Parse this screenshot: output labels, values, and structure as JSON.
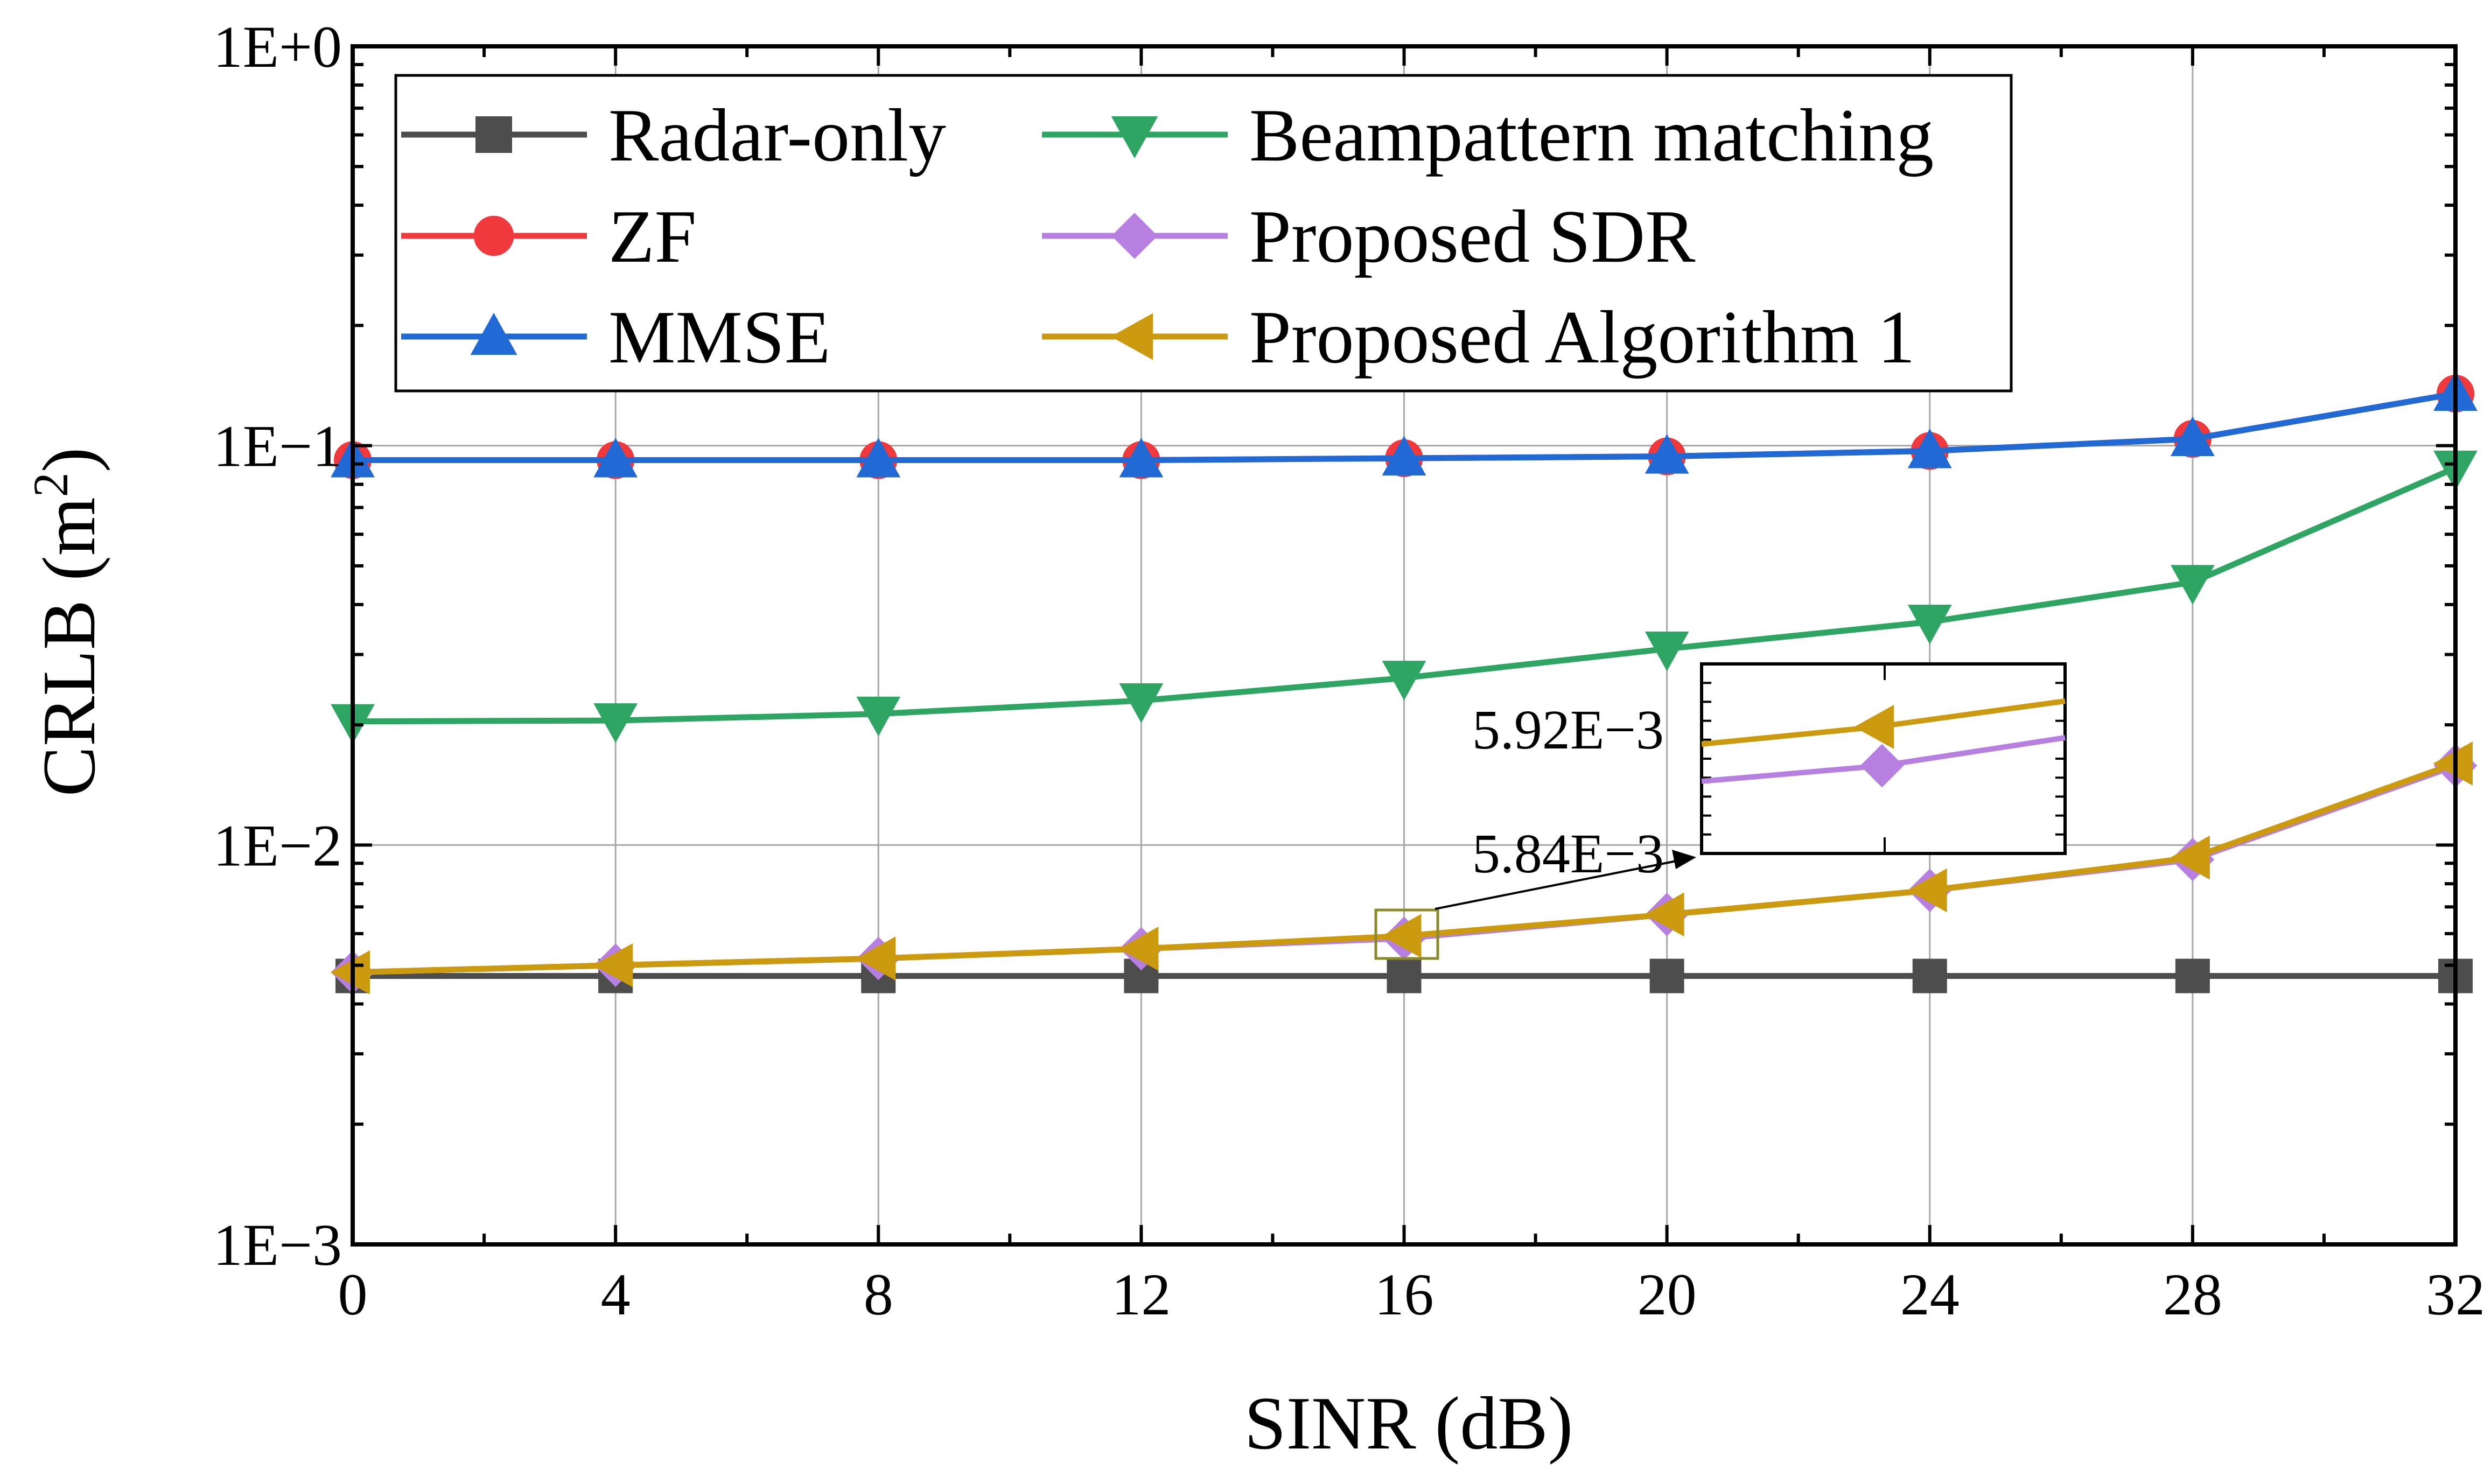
{
  "chart_data": {
    "type": "line",
    "title": "",
    "xlabel": "SINR (dB)",
    "ylabel_main": "CRLB (m",
    "ylabel_sup": "2",
    "ylabel_close": ")",
    "yscale": "log",
    "xlim": [
      0,
      32
    ],
    "ylim": [
      0.001,
      1
    ],
    "grid": true,
    "legend_position": "top-left",
    "x": [
      0,
      4,
      8,
      12,
      16,
      20,
      24,
      28,
      32
    ],
    "x_tick_labels": [
      "0",
      "4",
      "8",
      "12",
      "16",
      "20",
      "24",
      "28",
      "32"
    ],
    "y_tick_labels": [
      "1E−3",
      "1E−2",
      "1E−1",
      "1E+0"
    ],
    "y_ticks": [
      0.001,
      0.01,
      0.1,
      1
    ],
    "series": [
      {
        "name": "Radar-only",
        "color": "#4d4d4d",
        "marker": "square",
        "values": [
          0.0047,
          0.0047,
          0.0047,
          0.0047,
          0.0047,
          0.0047,
          0.0047,
          0.0047,
          0.0047
        ]
      },
      {
        "name": "ZF",
        "color": "#f0393c",
        "marker": "circle",
        "values": [
          0.092,
          0.092,
          0.092,
          0.092,
          0.093,
          0.094,
          0.097,
          0.104,
          0.135
        ]
      },
      {
        "name": "MMSE",
        "color": "#2169d4",
        "marker": "triangle-up",
        "values": [
          0.092,
          0.092,
          0.092,
          0.092,
          0.093,
          0.094,
          0.097,
          0.104,
          0.135
        ]
      },
      {
        "name": "Beampattern matching",
        "color": "#2fa563",
        "marker": "triangle-down",
        "values": [
          0.0204,
          0.0205,
          0.0213,
          0.023,
          0.0262,
          0.031,
          0.0362,
          0.0455,
          0.088
        ]
      },
      {
        "name": "Proposed SDR",
        "color": "#b77fe0",
        "marker": "diamond",
        "values": [
          0.0048,
          0.005,
          0.0052,
          0.0055,
          0.00584,
          0.0067,
          0.0077,
          0.0092,
          0.0158
        ]
      },
      {
        "name": "Proposed Algorithm 1",
        "color": "#cc9a0f",
        "marker": "triangle-left",
        "values": [
          0.0048,
          0.005,
          0.0052,
          0.0055,
          0.00592,
          0.0067,
          0.0077,
          0.0093,
          0.016
        ]
      }
    ],
    "annotations": [
      {
        "text": "5.84E−3",
        "target": "Proposed SDR at 16 dB"
      },
      {
        "text": "5.92E−3",
        "target": "Proposed Algorithm 1 at 16 dB (inset)"
      }
    ]
  }
}
